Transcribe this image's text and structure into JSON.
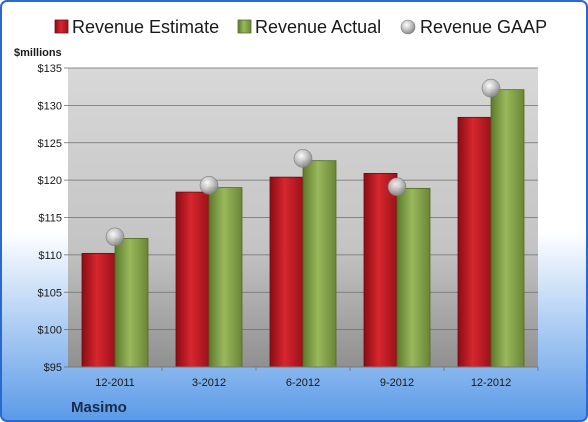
{
  "colors": {
    "estimate": "#c8202a",
    "actual": "#8aa850",
    "gaap": "#b8b8b8",
    "frame": "#2a6ad0",
    "background_top": "#ffffff",
    "background_bottom": "#5a9ae8",
    "plot_top": "#d8d8d8",
    "plot_bottom": "#909090"
  },
  "company": "Masimo",
  "chart_data": {
    "type": "bar",
    "categories": [
      "12-2011",
      "3-2012",
      "6-2012",
      "9-2012",
      "12-2012"
    ],
    "series": [
      {
        "name": "Revenue Estimate",
        "kind": "bar",
        "values": [
          110.2,
          118.4,
          120.4,
          120.9,
          128.4
        ]
      },
      {
        "name": "Revenue Actual",
        "kind": "bar",
        "values": [
          112.2,
          119.0,
          122.6,
          118.9,
          132.1
        ]
      },
      {
        "name": "Revenue GAAP",
        "kind": "marker",
        "values": [
          112.4,
          119.3,
          122.9,
          119.1,
          132.3
        ]
      }
    ],
    "ylabel": "$millions",
    "ylim": [
      95,
      135
    ],
    "yticks": [
      95,
      100,
      105,
      110,
      115,
      120,
      125,
      130,
      135
    ],
    "ytick_labels": [
      "$95",
      "$100",
      "$105",
      "$110",
      "$115",
      "$120",
      "$125",
      "$130",
      "$135"
    ],
    "grid": true,
    "legend_position": "top"
  }
}
